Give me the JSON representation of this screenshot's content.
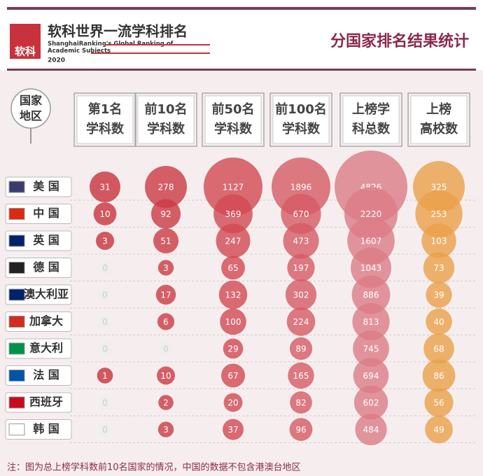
{
  "header": {
    "logo_mark": "软科",
    "logo_title": "软科世界一流学科排名",
    "logo_subtitle": "ShanghaiRanking's Global Ranking of Academic Subjects",
    "logo_year": "2020",
    "title": "分国家排名结果统计"
  },
  "chart_data": {
    "type": "bubble-matrix",
    "row_header": "国家\n地区",
    "categories": [
      "美 国",
      "中 国",
      "英 国",
      "德 国",
      "澳大利亚",
      "加拿大",
      "意大利",
      "法 国",
      "西班牙",
      "韩 国"
    ],
    "series": [
      {
        "name": "第1名\n学科数",
        "color": "#c8323c",
        "values": [
          31,
          10,
          3,
          0,
          0,
          0,
          0,
          1,
          0,
          0
        ]
      },
      {
        "name": "前10名\n学科数",
        "color": "#cc3a44",
        "values": [
          278,
          92,
          51,
          3,
          17,
          6,
          0,
          10,
          2,
          3
        ]
      },
      {
        "name": "前50名\n学科数",
        "color": "#d24852",
        "values": [
          1127,
          369,
          247,
          65,
          132,
          100,
          29,
          67,
          20,
          37
        ]
      },
      {
        "name": "前100名\n学科数",
        "color": "#d65a64",
        "values": [
          1896,
          670,
          473,
          197,
          302,
          224,
          89,
          165,
          82,
          96
        ]
      },
      {
        "name": "上榜学\n科总数",
        "color": "#dc7c86",
        "values": [
          4826,
          2220,
          1607,
          1043,
          886,
          813,
          745,
          694,
          602,
          484
        ]
      },
      {
        "name": "上榜\n高校数",
        "color": "#eba04a",
        "values": [
          325,
          253,
          103,
          73,
          39,
          40,
          68,
          86,
          56,
          49
        ]
      }
    ],
    "note": "注：图为总上榜学科数前10名国家的情况，中国的数据不包含港澳台地区"
  }
}
